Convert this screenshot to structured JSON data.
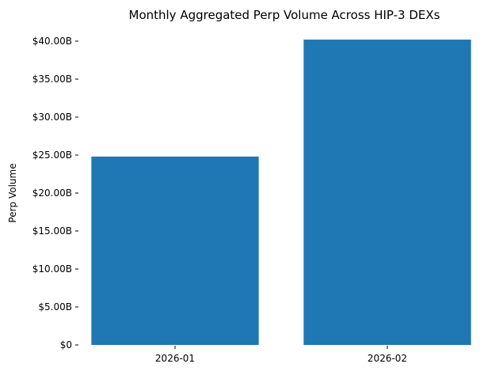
{
  "chart_data": {
    "type": "bar",
    "title": "Monthly Aggregated Perp Volume Across HIP-3 DEXs",
    "xlabel": "",
    "ylabel": "Perp Volume",
    "categories": [
      "2026-01",
      "2026-02"
    ],
    "values": [
      24800000000,
      40200000000
    ],
    "ylim": [
      0,
      40000000000
    ],
    "yticks": [
      {
        "value": 0,
        "label": "$0"
      },
      {
        "value": 5000000000,
        "label": "$5.00B"
      },
      {
        "value": 10000000000,
        "label": "$10.00B"
      },
      {
        "value": 15000000000,
        "label": "$15.00B"
      },
      {
        "value": 20000000000,
        "label": "$20.00B"
      },
      {
        "value": 25000000000,
        "label": "$25.00B"
      },
      {
        "value": 30000000000,
        "label": "$30.00B"
      },
      {
        "value": 35000000000,
        "label": "$35.00B"
      },
      {
        "value": 40000000000,
        "label": "$40.00B"
      }
    ],
    "grid": false,
    "legend": "none",
    "bar_color": "#1f77b4"
  }
}
